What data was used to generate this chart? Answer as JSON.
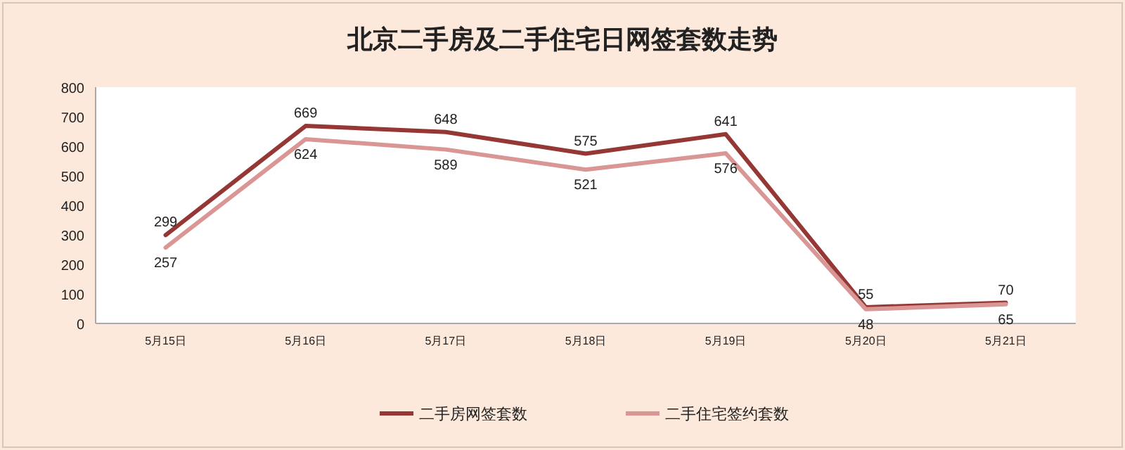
{
  "chart_data": {
    "type": "line",
    "title": "北京二手房及二手住宅日网签套数走势",
    "categories": [
      "5月15日",
      "5月16日",
      "5月17日",
      "5月18日",
      "5月19日",
      "5月20日",
      "5月21日"
    ],
    "series": [
      {
        "name": "二手房网签套数",
        "color": "#953735",
        "values": [
          299,
          669,
          648,
          575,
          641,
          55,
          70
        ]
      },
      {
        "name": "二手住宅签约套数",
        "color": "#d99694",
        "values": [
          257,
          624,
          589,
          521,
          576,
          48,
          65
        ]
      }
    ],
    "ylim": [
      0,
      800
    ],
    "yticks": [
      0,
      100,
      200,
      300,
      400,
      500,
      600,
      700,
      800
    ],
    "grid": false,
    "legend": "bottom",
    "marker": "none",
    "line_style": "solid",
    "data_labels": true
  }
}
